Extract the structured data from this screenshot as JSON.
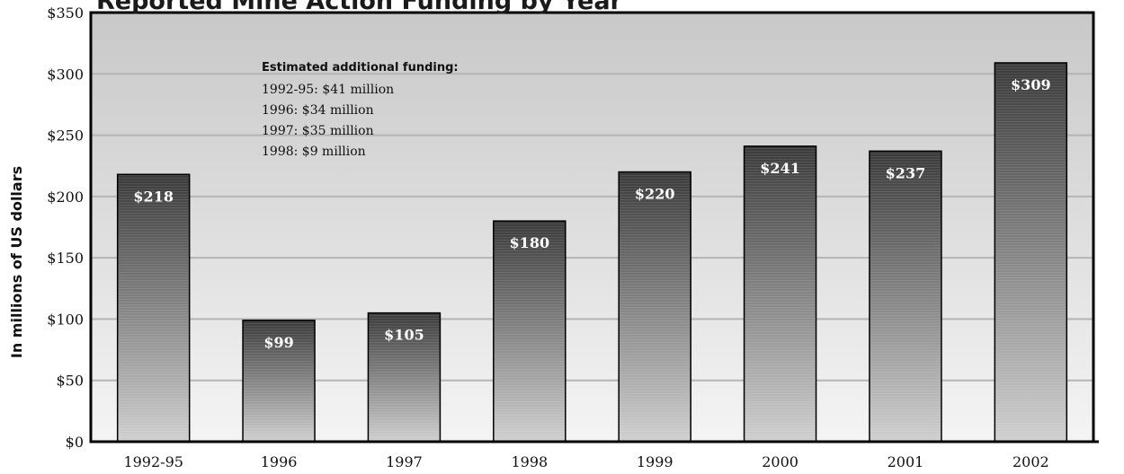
{
  "chart_data": {
    "type": "bar",
    "title": "Reported Mine Action Funding by Year",
    "ylabel": "In millions of US dollars",
    "xlabel": "",
    "ylim": [
      0,
      350
    ],
    "y_ticks": [
      "$0",
      "$50",
      "$100",
      "$150",
      "$200",
      "$250",
      "$300",
      "$350"
    ],
    "y_tick_values": [
      0,
      50,
      100,
      150,
      200,
      250,
      300,
      350
    ],
    "categories": [
      "1992-95",
      "1996",
      "1997",
      "1998",
      "1999",
      "2000",
      "2001",
      "2002"
    ],
    "values": [
      218,
      99,
      105,
      180,
      220,
      241,
      237,
      309
    ],
    "data_labels": [
      "$218",
      "$99",
      "$105",
      "$180",
      "$220",
      "$241",
      "$237",
      "$309"
    ],
    "grid": true,
    "annotation": {
      "heading": "Estimated additional funding:",
      "lines": [
        "1992-95: $41 million",
        "1996: $34 million",
        "1997: $35 million",
        "1998: $9 million"
      ]
    },
    "colors": {
      "bar_top": "#3a3a3a",
      "bar_bottom": "#cfcfcf",
      "plot_bg_top": "#c8c8c8",
      "plot_bg_bottom": "#f4f4f4",
      "gridline": "#b4b4b4"
    }
  }
}
